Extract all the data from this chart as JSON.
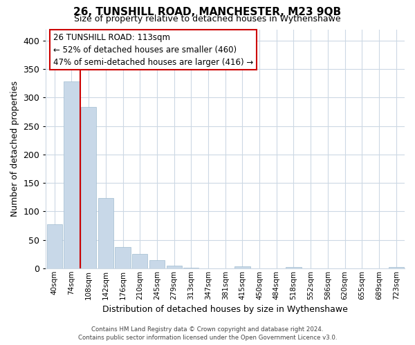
{
  "title": "26, TUNSHILL ROAD, MANCHESTER, M23 9QB",
  "subtitle": "Size of property relative to detached houses in Wythenshawe",
  "xlabel": "Distribution of detached houses by size in Wythenshawe",
  "ylabel": "Number of detached properties",
  "bar_labels": [
    "40sqm",
    "74sqm",
    "108sqm",
    "142sqm",
    "176sqm",
    "210sqm",
    "245sqm",
    "279sqm",
    "313sqm",
    "347sqm",
    "381sqm",
    "415sqm",
    "450sqm",
    "484sqm",
    "518sqm",
    "552sqm",
    "586sqm",
    "620sqm",
    "655sqm",
    "689sqm",
    "723sqm"
  ],
  "bar_values": [
    77,
    329,
    283,
    123,
    37,
    25,
    14,
    5,
    1,
    0,
    0,
    3,
    0,
    0,
    2,
    0,
    0,
    0,
    0,
    0,
    2
  ],
  "bar_color": "#c8d8e8",
  "bar_edge_color": "#a0bcd0",
  "highlight_line_color": "#cc0000",
  "ylim": [
    0,
    420
  ],
  "yticks": [
    0,
    50,
    100,
    150,
    200,
    250,
    300,
    350,
    400
  ],
  "annotation_title": "26 TUNSHILL ROAD: 113sqm",
  "annotation_line1": "← 52% of detached houses are smaller (460)",
  "annotation_line2": "47% of semi-detached houses are larger (416) →",
  "footer_line1": "Contains HM Land Registry data © Crown copyright and database right 2024.",
  "footer_line2": "Contains public sector information licensed under the Open Government Licence v3.0.",
  "background_color": "#ffffff",
  "grid_color": "#ccd8e4"
}
